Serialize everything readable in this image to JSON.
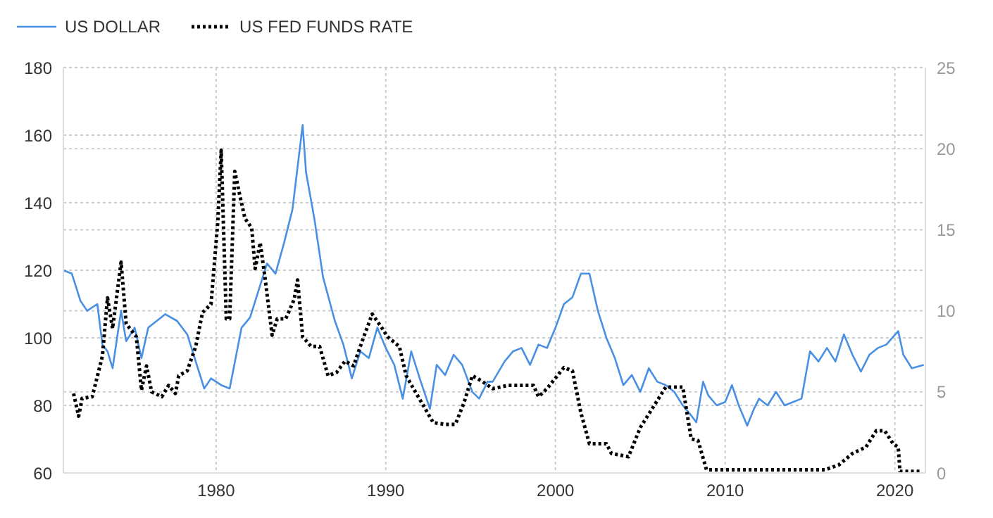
{
  "chart_data": {
    "type": "line",
    "legend": "top left",
    "grid": true,
    "xlim": [
      1971,
      2021.8
    ],
    "xticks": [
      1980,
      1990,
      2000,
      2010,
      2020
    ],
    "ylim": [
      60,
      180
    ],
    "yticks": [
      60,
      80,
      100,
      120,
      140,
      160,
      180
    ],
    "y2lim": [
      0,
      25
    ],
    "y2ticks": [
      0,
      5,
      10,
      15,
      20,
      25
    ],
    "marker": "none",
    "series": [
      {
        "name": "US DOLLAR",
        "color": "#4a90e2",
        "line_style": "solid",
        "x": [
          1971,
          1971.5,
          1972,
          1972.4,
          1973,
          1973.3,
          1973.6,
          1973.9,
          1974.4,
          1974.7,
          1975.2,
          1975.6,
          1976,
          1977,
          1977.7,
          1978.3,
          1978.8,
          1979.3,
          1979.7,
          1980.3,
          1980.8,
          1981.5,
          1982,
          1982.5,
          1983,
          1983.5,
          1984,
          1984.5,
          1985.1,
          1985.3,
          1985.8,
          1986.3,
          1987,
          1987.5,
          1988,
          1988.5,
          1989,
          1989.5,
          1990,
          1990.5,
          1991,
          1991.5,
          1992,
          1992.6,
          1993,
          1993.5,
          1994,
          1994.5,
          1995.1,
          1995.5,
          1996,
          1996.3,
          1997,
          1997.5,
          1998,
          1998.5,
          1999,
          1999.5,
          2000,
          2000.5,
          2001,
          2001.5,
          2002,
          2002.5,
          2003,
          2003.5,
          2004,
          2004.5,
          2005,
          2005.5,
          2006,
          2006.5,
          2007,
          2007.5,
          2008,
          2008.3,
          2008.7,
          2009,
          2009.5,
          2010,
          2010.4,
          2010.8,
          2011.3,
          2011.7,
          2012,
          2012.5,
          2013,
          2013.5,
          2014,
          2014.5,
          2015,
          2015.5,
          2016,
          2016.5,
          2017,
          2017.5,
          2018,
          2018.5,
          2019,
          2019.5,
          2020.2,
          2020.5,
          2021,
          2021.7
        ],
        "values": [
          120,
          119,
          111,
          108,
          110,
          98,
          96,
          91,
          108,
          99,
          103,
          94,
          103,
          107,
          105,
          101,
          93,
          85,
          88,
          86,
          85,
          103,
          106,
          114,
          122,
          119,
          128,
          138,
          163,
          149,
          135,
          118,
          105,
          98,
          88,
          96,
          94,
          103,
          97,
          92,
          82,
          96,
          88,
          79,
          92,
          89,
          95,
          92,
          84,
          82,
          87,
          87,
          93,
          96,
          97,
          92,
          98,
          97,
          103,
          110,
          112,
          119,
          119,
          108,
          100,
          94,
          86,
          89,
          84,
          91,
          87,
          86,
          84,
          80,
          77,
          75,
          87,
          83,
          80,
          81,
          86,
          80,
          74,
          79,
          82,
          80,
          84,
          80,
          81,
          82,
          96,
          93,
          97,
          93,
          101,
          95,
          90,
          95,
          97,
          98,
          102,
          95,
          91,
          92
        ]
      },
      {
        "name": "US FED FUNDS RATE",
        "color": "#000000",
        "line_style": "dotted",
        "axis": "y2",
        "x": [
          1971.6,
          1971.9,
          1972.1,
          1972.7,
          1973.3,
          1973.6,
          1973.9,
          1974.4,
          1974.7,
          1975.3,
          1975.6,
          1975.9,
          1976.2,
          1976.8,
          1977.2,
          1977.6,
          1977.8,
          1978.3,
          1978.8,
          1979.2,
          1979.7,
          1980.1,
          1980.3,
          1980.6,
          1980.8,
          1981.1,
          1981.4,
          1981.7,
          1982.1,
          1982.3,
          1982.6,
          1982.9,
          1983.3,
          1983.6,
          1984.1,
          1984.6,
          1984.8,
          1985.1,
          1985.6,
          1986.1,
          1986.6,
          1987.1,
          1987.6,
          1988.1,
          1988.6,
          1989.2,
          1989.8,
          1990.1,
          1990.8,
          1991.2,
          1991.8,
          1992.3,
          1992.8,
          1993.5,
          1994.1,
          1994.6,
          1995.1,
          1995.6,
          1996.3,
          1997.2,
          1998.7,
          1999,
          1999.5,
          2000.5,
          2001,
          2001.5,
          2002,
          2003,
          2003.3,
          2004.3,
          2005,
          2006.5,
          2007.5,
          2008,
          2008.4,
          2008.9,
          2015.9,
          2016.7,
          2017.5,
          2018.3,
          2018.9,
          2019.4,
          2019.9,
          2020.2,
          2020.3,
          2021.6
        ],
        "values": [
          4.9,
          3.5,
          4.6,
          4.7,
          7.2,
          10.8,
          8.9,
          13,
          9.2,
          8.4,
          5.1,
          6.6,
          5,
          4.7,
          5.4,
          4.9,
          6,
          6.3,
          7.8,
          9.9,
          10.4,
          15.5,
          19.9,
          9.5,
          9.5,
          18.6,
          17.1,
          15.7,
          15.1,
          12.6,
          14.2,
          11.9,
          8.5,
          9.5,
          9.5,
          10.7,
          11.9,
          8.4,
          7.8,
          7.8,
          6,
          6.2,
          6.9,
          6.6,
          8.1,
          9.8,
          8.9,
          8.4,
          7.8,
          6,
          4.9,
          4,
          3.1,
          3,
          3,
          4.3,
          6,
          5.7,
          5.2,
          5.4,
          5.4,
          4.7,
          5.2,
          6.5,
          6.3,
          3.7,
          1.8,
          1.8,
          1.2,
          1,
          2.8,
          5.3,
          5.3,
          2.1,
          2,
          0.2,
          0.2,
          0.5,
          1.2,
          1.6,
          2.6,
          2.6,
          1.8,
          1.6,
          0.1,
          0.1
        ]
      }
    ]
  }
}
